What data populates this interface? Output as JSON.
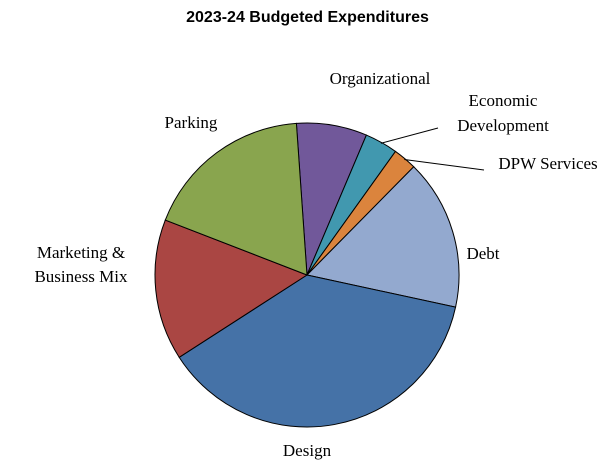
{
  "chart_data": {
    "type": "pie",
    "title": "2023-24 Budgeted Expenditures",
    "slices": [
      {
        "label": "Organizational",
        "value": 7.5,
        "color": "#71589A"
      },
      {
        "label": "Economic Development",
        "value": 3.5,
        "color": "#4198AF"
      },
      {
        "label": "DPW Services",
        "value": 2.5,
        "color": "#DB843D"
      },
      {
        "label": "Debt",
        "value": 16.0,
        "color": "#93A9CF"
      },
      {
        "label": "Design",
        "value": 37.5,
        "color": "#4572A7"
      },
      {
        "label": "Marketing & Business Mix",
        "value": 15.0,
        "color": "#AA4643"
      },
      {
        "label": "Parking",
        "value": 18.0,
        "color": "#89A54E"
      }
    ],
    "start_angle_deg": -4,
    "legend": "none"
  }
}
